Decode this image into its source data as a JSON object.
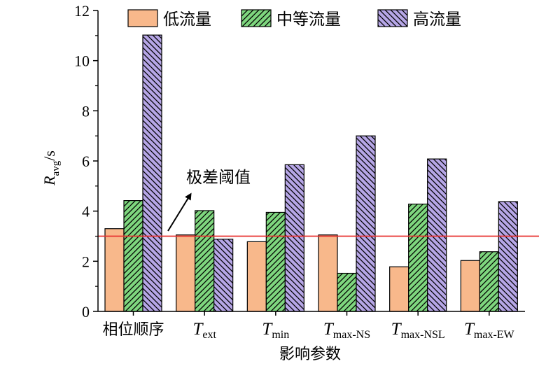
{
  "chart_data": {
    "type": "bar",
    "categories": [
      {
        "main": "相位顺序",
        "sub": ""
      },
      {
        "main": "T",
        "sub": "ext"
      },
      {
        "main": "T",
        "sub": "min"
      },
      {
        "main": "T",
        "sub": "max-NS"
      },
      {
        "main": "T",
        "sub": "max-NSL"
      },
      {
        "main": "T",
        "sub": "max-EW"
      }
    ],
    "series": [
      {
        "name": "低流量",
        "color": "#f8b88b",
        "pattern": "none",
        "values": [
          3.3,
          3.05,
          2.78,
          3.05,
          1.78,
          2.03
        ]
      },
      {
        "name": "中等流量",
        "color": "#7ed67e",
        "pattern": "diagonal-forward",
        "values": [
          4.42,
          4.02,
          3.95,
          1.52,
          4.28,
          2.38
        ]
      },
      {
        "name": "高流量",
        "color": "#b6a6e6",
        "pattern": "diagonal-backward",
        "values": [
          11.02,
          2.88,
          5.85,
          7.0,
          6.08,
          4.38
        ]
      }
    ],
    "xlabel": "影响参数",
    "ylabel": {
      "main": "R",
      "sub": "avg",
      "suffix": "/s"
    },
    "ylim": [
      0,
      12
    ],
    "yticks": [
      0,
      2,
      4,
      6,
      8,
      10,
      12
    ],
    "threshold": {
      "value": 3.0,
      "color": "#e8312f"
    },
    "annotation": {
      "text": "极差阈值"
    },
    "legend": {
      "position": "top"
    }
  }
}
